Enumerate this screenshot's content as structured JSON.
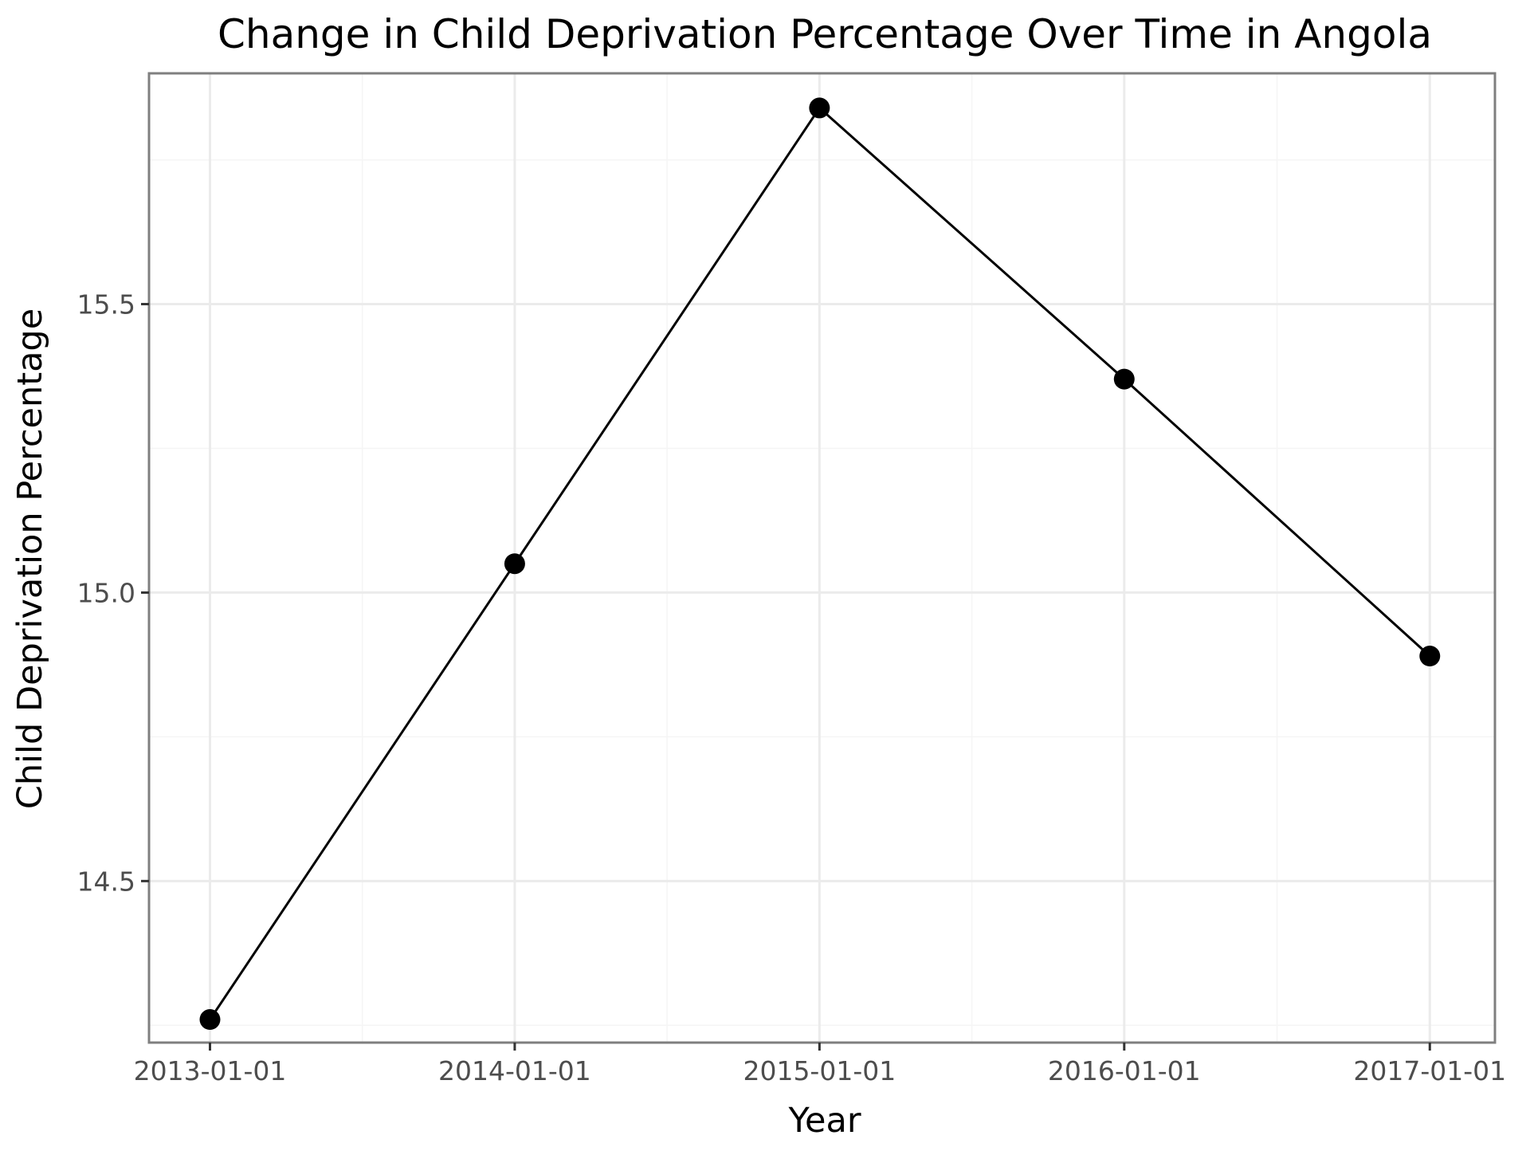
{
  "chart_data": {
    "type": "line",
    "title": "Change in Child Deprivation Percentage Over Time in Angola",
    "xlabel": "Year",
    "ylabel": "Child Deprivation Percentage",
    "x": [
      "2013-01-01",
      "2014-01-01",
      "2015-01-01",
      "2016-01-01",
      "2017-01-01"
    ],
    "series": [
      {
        "values": [
          14.26,
          15.05,
          15.84,
          15.37,
          14.89
        ]
      }
    ],
    "xlim": [
      "2012-10-20",
      "2017-03-20"
    ],
    "ylim": [
      14.22,
      15.9
    ],
    "x_ticks": [
      "2013-01-01",
      "2014-01-01",
      "2015-01-01",
      "2016-01-01",
      "2017-01-01"
    ],
    "y_ticks": [
      14.5,
      15.0,
      15.5
    ],
    "y_tick_labels": [
      "14.5",
      "15.0",
      "15.5"
    ],
    "grid": true,
    "legend": "none",
    "colors": {
      "line": "#000000",
      "points": "#000000",
      "grid_major": "#ebebeb",
      "grid_minor": "#f5f5f5",
      "panel_border": "#7f7f7f",
      "tick_text": "#4d4d4d"
    }
  }
}
